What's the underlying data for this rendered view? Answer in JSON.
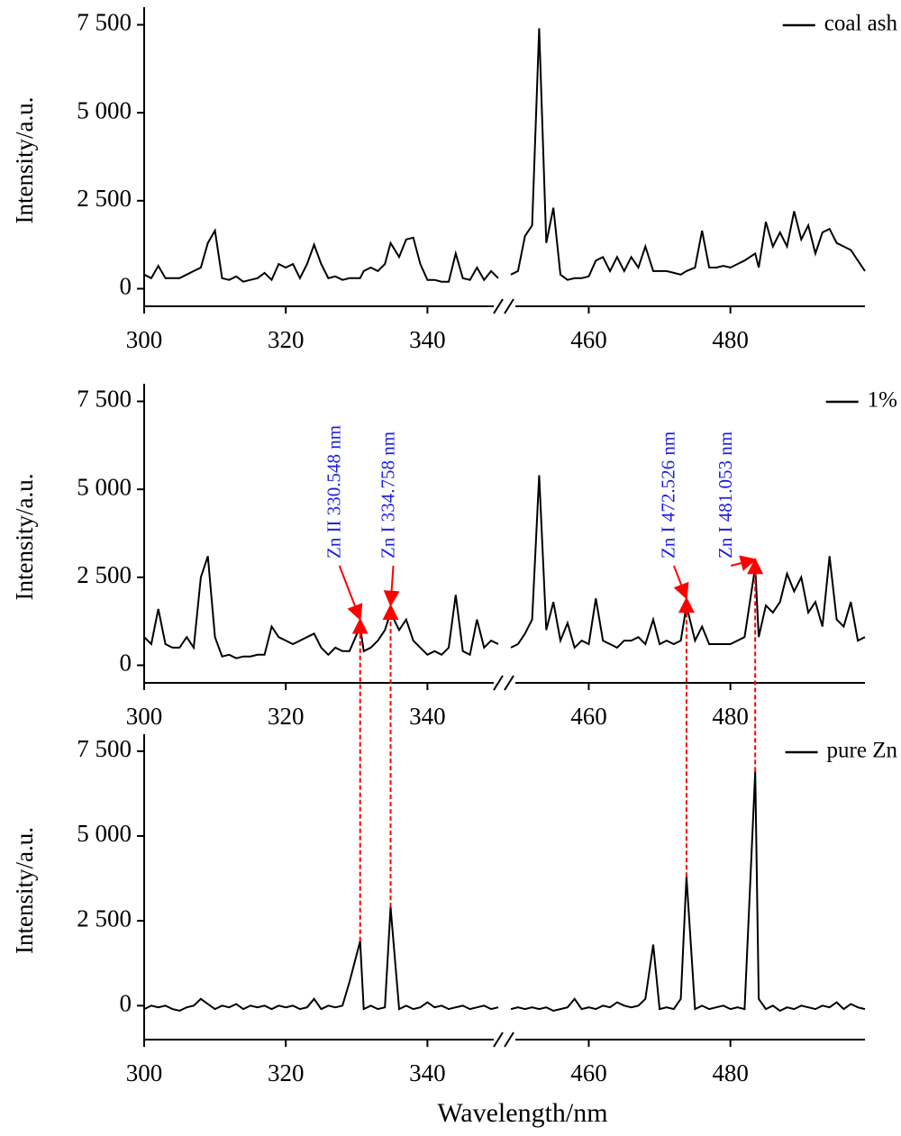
{
  "chart_data": [
    {
      "type": "line",
      "ylabel": "Intensity/a.u.",
      "x": [
        300,
        301,
        302,
        303,
        304,
        305,
        306,
        307,
        308,
        309,
        310,
        311,
        312,
        313,
        314,
        315,
        316,
        317,
        318,
        319,
        320,
        321,
        322,
        323,
        324,
        325,
        326,
        327,
        328,
        329,
        330.5,
        331,
        332,
        333,
        334,
        334.8,
        336,
        337,
        338,
        339,
        340,
        341,
        342,
        343,
        344,
        345,
        346,
        347,
        348,
        349,
        350,
        449,
        450,
        451,
        452,
        453,
        454,
        455,
        456,
        457,
        458,
        459,
        460,
        461,
        462,
        463,
        464,
        465,
        466,
        467,
        468,
        469.1,
        470,
        471,
        472,
        473,
        473.8,
        475,
        476,
        477,
        478,
        479,
        480,
        481,
        482,
        483.5,
        484,
        485,
        486,
        487,
        488,
        489,
        490,
        491,
        492,
        493,
        494,
        495,
        496,
        497,
        498,
        499
      ],
      "series": [
        {
          "name": "coal ash",
          "color": "#000000",
          "values": [
            400,
            300,
            650,
            300,
            300,
            300,
            400,
            500,
            600,
            1300,
            1650,
            300,
            250,
            350,
            200,
            250,
            300,
            450,
            250,
            700,
            600,
            700,
            300,
            700,
            1250,
            700,
            300,
            350,
            250,
            300,
            300,
            500,
            600,
            500,
            700,
            1300,
            900,
            1400,
            1450,
            700,
            250,
            250,
            200,
            200,
            1000,
            300,
            250,
            600,
            250,
            500,
            300,
            400,
            500,
            1500,
            1800,
            7400,
            1300,
            2300,
            400,
            250,
            300,
            300,
            350,
            800,
            900,
            500,
            900,
            500,
            900,
            600,
            1200,
            500,
            500,
            500,
            450,
            400,
            500,
            600,
            1650,
            600,
            600,
            650,
            600,
            700,
            800,
            1000,
            600,
            1900,
            1200,
            1600,
            1200,
            2200,
            1400,
            1800,
            1000,
            1600,
            1700,
            1300,
            1200,
            1100,
            800,
            500
          ]
        }
      ],
      "xlim": [
        [
          300,
          350
        ],
        [
          449,
          499
        ]
      ],
      "xticks": [
        300,
        320,
        340,
        460,
        480
      ],
      "ylim": [
        -500,
        8000
      ],
      "yticks": [
        0,
        {
          "value": 2500,
          "label": "2 500"
        },
        {
          "value": 5000,
          "label": "5 000"
        },
        {
          "value": 7500,
          "label": "7 500"
        }
      ],
      "legend": "upper right"
    },
    {
      "type": "line",
      "ylabel": "Intensity/a.u.",
      "x": [
        300,
        301,
        302,
        303,
        304,
        305,
        306,
        307,
        308,
        309,
        310,
        311,
        312,
        313,
        314,
        315,
        316,
        317,
        318,
        319,
        320,
        321,
        322,
        323,
        324,
        325,
        326,
        327,
        328,
        329,
        330.5,
        331,
        332,
        333,
        334,
        334.8,
        336,
        337,
        338,
        339,
        340,
        341,
        342,
        343,
        344,
        345,
        346,
        347,
        348,
        349,
        350,
        449,
        450,
        451,
        452,
        453,
        454,
        455,
        456,
        457,
        458,
        459,
        460,
        461,
        462,
        463,
        464,
        465,
        466,
        467,
        468,
        469.1,
        470,
        471,
        472,
        473,
        473.8,
        475,
        476,
        477,
        478,
        479,
        480,
        481,
        482,
        483.5,
        484,
        485,
        486,
        487,
        488,
        489,
        490,
        491,
        492,
        493,
        494,
        495,
        496,
        497,
        498,
        499
      ],
      "series": [
        {
          "name": "1%",
          "color": "#000000",
          "values": [
            800,
            600,
            1600,
            600,
            500,
            500,
            800,
            500,
            2500,
            3100,
            800,
            250,
            300,
            200,
            250,
            250,
            300,
            300,
            1100,
            800,
            700,
            600,
            700,
            800,
            900,
            500,
            300,
            500,
            400,
            400,
            1100,
            400,
            500,
            700,
            1000,
            1500,
            1000,
            1300,
            700,
            500,
            300,
            400,
            300,
            500,
            2000,
            400,
            300,
            1300,
            500,
            700,
            600,
            500,
            600,
            900,
            1300,
            5400,
            1000,
            1800,
            700,
            1200,
            500,
            700,
            600,
            1900,
            700,
            600,
            500,
            700,
            700,
            800,
            600,
            1300,
            600,
            700,
            600,
            700,
            1700,
            700,
            1100,
            600,
            600,
            600,
            600,
            700,
            800,
            2800,
            800,
            1700,
            1500,
            1800,
            2600,
            2100,
            2500,
            1500,
            1800,
            1100,
            3100,
            1300,
            1100,
            1800,
            700,
            800
          ]
        }
      ],
      "xlim": [
        [
          300,
          350
        ],
        [
          449,
          499
        ]
      ],
      "xticks": [
        300,
        320,
        340,
        460,
        480
      ],
      "ylim": [
        -500,
        8000
      ],
      "yticks": [
        0,
        {
          "value": 2500,
          "label": "2 500"
        },
        {
          "value": 5000,
          "label": "5 000"
        },
        {
          "value": 7500,
          "label": "7 500"
        }
      ],
      "legend": "upper right",
      "annotations": [
        {
          "text": "Zn II 330.548 nm",
          "x": 330.5
        },
        {
          "text": "Zn I 334.758 nm",
          "x": 334.8
        },
        {
          "text": "Zn I 472.526 nm",
          "x": 473.8
        },
        {
          "text": "Zn I 481.053 nm",
          "x": 483.5
        }
      ]
    },
    {
      "type": "line",
      "ylabel": "Intensity/a.u.",
      "xlabel": "Wavelength/nm",
      "x": [
        300,
        301,
        302,
        303,
        304,
        305,
        306,
        307,
        308,
        309,
        310,
        311,
        312,
        313,
        314,
        315,
        316,
        317,
        318,
        319,
        320,
        321,
        322,
        323,
        324,
        325,
        326,
        327,
        328,
        329,
        330.5,
        331,
        332,
        333,
        334,
        334.8,
        336,
        337,
        338,
        339,
        340,
        341,
        342,
        343,
        344,
        345,
        346,
        347,
        348,
        349,
        350,
        449,
        450,
        451,
        452,
        453,
        454,
        455,
        456,
        457,
        458,
        459,
        460,
        461,
        462,
        463,
        464,
        465,
        466,
        467,
        468,
        469.1,
        470,
        471,
        472,
        473,
        473.8,
        475,
        476,
        477,
        478,
        479,
        480,
        481,
        482,
        483.5,
        484,
        485,
        486,
        487,
        488,
        489,
        490,
        491,
        492,
        493,
        494,
        495,
        496,
        497,
        498,
        499
      ],
      "series": [
        {
          "name": "pure Zn",
          "color": "#000000",
          "values": [
            -100,
            0,
            -50,
            0,
            -100,
            -150,
            -50,
            0,
            200,
            50,
            -100,
            0,
            -50,
            50,
            -100,
            0,
            -50,
            0,
            -100,
            0,
            -50,
            0,
            -100,
            -50,
            200,
            -100,
            0,
            -50,
            0,
            700,
            1900,
            -100,
            0,
            -100,
            -50,
            2900,
            -100,
            0,
            -100,
            -50,
            100,
            -50,
            0,
            -100,
            -50,
            0,
            -100,
            -50,
            0,
            -100,
            -50,
            -100,
            -50,
            -100,
            -50,
            -100,
            -50,
            -150,
            -100,
            -50,
            200,
            -100,
            -50,
            -100,
            0,
            -50,
            100,
            0,
            -50,
            0,
            200,
            1800,
            -100,
            -50,
            -100,
            200,
            3800,
            -100,
            0,
            -100,
            -50,
            0,
            -100,
            -50,
            -100,
            6900,
            200,
            -100,
            0,
            -150,
            -50,
            -100,
            0,
            -50,
            -100,
            0,
            -50,
            100,
            -100,
            50,
            -50,
            -100
          ]
        }
      ],
      "xlim": [
        [
          300,
          350
        ],
        [
          449,
          499
        ]
      ],
      "xticks": [
        300,
        320,
        340,
        460,
        480
      ],
      "ylim": [
        -1000,
        8000
      ],
      "yticks": [
        0,
        {
          "value": 2500,
          "label": "2 500"
        },
        {
          "value": 5000,
          "label": "5 000"
        },
        {
          "value": 7500,
          "label": "7 500"
        }
      ],
      "legend": "upper right"
    }
  ]
}
